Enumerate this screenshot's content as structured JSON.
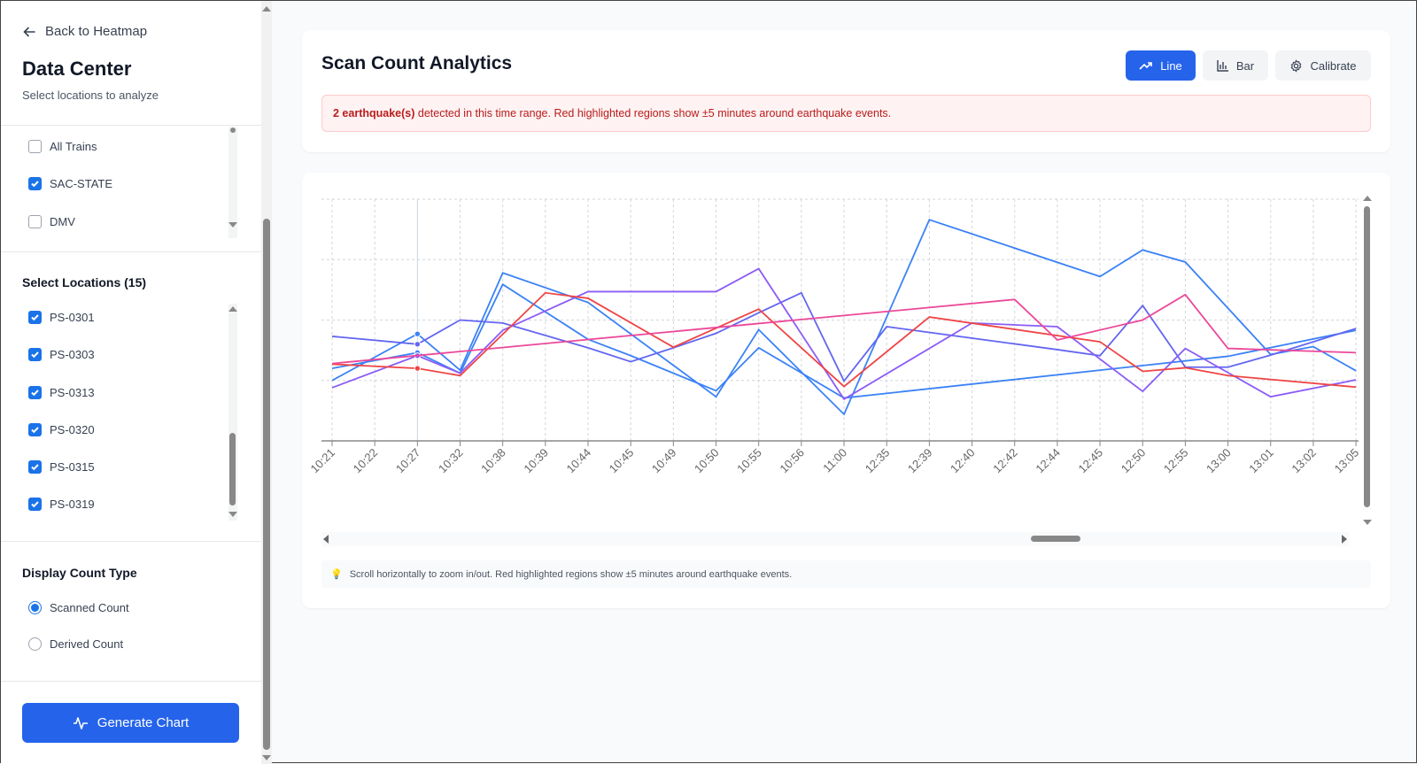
{
  "sidebar": {
    "back_label": "Back to Heatmap",
    "title": "Data Center",
    "subtitle": "Select locations to analyze",
    "trains": [
      {
        "label": "All Trains",
        "checked": false
      },
      {
        "label": "SAC-STATE",
        "checked": true
      },
      {
        "label": "DMV",
        "checked": false
      }
    ],
    "locations_title": "Select Locations (15)",
    "locations": [
      {
        "label": "PS-0301",
        "checked": true
      },
      {
        "label": "PS-0303",
        "checked": true
      },
      {
        "label": "PS-0313",
        "checked": true
      },
      {
        "label": "PS-0320",
        "checked": true
      },
      {
        "label": "PS-0315",
        "checked": true
      },
      {
        "label": "PS-0319",
        "checked": true
      }
    ],
    "count_type_title": "Display Count Type",
    "count_types": [
      {
        "label": "Scanned Count",
        "selected": true
      },
      {
        "label": "Derived Count",
        "selected": false
      }
    ],
    "generate_label": "Generate Chart"
  },
  "header": {
    "title": "Scan Count Analytics",
    "buttons": {
      "line": "Line",
      "bar": "Bar",
      "calibrate": "Calibrate"
    },
    "active_view": "line",
    "alert_bold": "2 earthquake(s)",
    "alert_text": " detected in this time range. Red highlighted regions show ±5 minutes around earthquake events."
  },
  "hint": {
    "icon": "lightbulb-icon",
    "text": "Scroll horizontally to zoom in/out. Red highlighted regions show ±5 minutes around earthquake events."
  },
  "colors": {
    "accent": "#2563eb",
    "alert_bg": "#fef2f2",
    "alert_text": "#b91c1c"
  },
  "chart_data": {
    "type": "line",
    "title": "",
    "xlabel": "",
    "ylabel": "",
    "ylim": [
      0,
      4
    ],
    "grid": true,
    "legend": "none",
    "categories": [
      "10:21",
      "10:22",
      "10:27",
      "10:32",
      "10:38",
      "10:39",
      "10:44",
      "10:45",
      "10:49",
      "10:50",
      "10:55",
      "10:56",
      "11:00",
      "12:35",
      "12:39",
      "12:40",
      "12:42",
      "12:44",
      "12:45",
      "12:50",
      "12:55",
      "13:00",
      "13:01",
      "13:02",
      "13:05"
    ],
    "hover_category": "10:27",
    "series": [
      {
        "color": "#3b82f6",
        "points": [
          [
            "10:21",
            1.0
          ],
          [
            "10:27",
            1.77
          ],
          [
            "10:32",
            1.17
          ],
          [
            "10:38",
            2.78
          ],
          [
            "10:44",
            2.29
          ],
          [
            "10:50",
            0.73
          ],
          [
            "10:55",
            1.84
          ],
          [
            "11:00",
            0.44
          ],
          [
            "12:39",
            3.66
          ],
          [
            "12:45",
            2.72
          ],
          [
            "12:50",
            3.16
          ],
          [
            "12:55",
            2.96
          ],
          [
            "13:01",
            1.43
          ],
          [
            "13:02",
            1.56
          ],
          [
            "13:05",
            1.16
          ]
        ]
      },
      {
        "color": "#3b82f6",
        "points": [
          [
            "10:21",
            1.2
          ],
          [
            "10:27",
            1.46
          ],
          [
            "10:32",
            1.12
          ],
          [
            "10:38",
            2.59
          ],
          [
            "10:44",
            1.68
          ],
          [
            "10:45",
            1.41
          ],
          [
            "10:50",
            0.83
          ],
          [
            "10:55",
            1.54
          ],
          [
            "11:00",
            0.71
          ],
          [
            "13:00",
            1.4
          ],
          [
            "13:05",
            1.83
          ]
        ]
      },
      {
        "color": "#6366f1",
        "points": [
          [
            "10:21",
            1.73
          ],
          [
            "10:27",
            1.6
          ],
          [
            "10:32",
            2.0
          ],
          [
            "10:38",
            1.95
          ],
          [
            "10:44",
            1.54
          ],
          [
            "10:45",
            1.31
          ],
          [
            "10:49",
            1.54
          ],
          [
            "10:50",
            1.78
          ],
          [
            "10:55",
            2.12
          ],
          [
            "10:56",
            2.45
          ],
          [
            "11:00",
            0.99
          ],
          [
            "12:35",
            1.89
          ],
          [
            "12:44",
            1.51
          ],
          [
            "12:45",
            1.41
          ],
          [
            "12:50",
            2.24
          ],
          [
            "12:55",
            1.22
          ],
          [
            "13:00",
            1.22
          ],
          [
            "13:01",
            1.42
          ],
          [
            "13:05",
            1.86
          ]
        ]
      },
      {
        "color": "#8b5cf6",
        "points": [
          [
            "10:21",
            0.88
          ],
          [
            "10:27",
            1.41
          ],
          [
            "10:32",
            1.12
          ],
          [
            "10:38",
            1.83
          ],
          [
            "10:44",
            2.47
          ],
          [
            "10:50",
            2.47
          ],
          [
            "10:55",
            2.85
          ],
          [
            "11:00",
            0.69
          ],
          [
            "12:40",
            1.95
          ],
          [
            "12:44",
            1.89
          ],
          [
            "12:50",
            0.82
          ],
          [
            "12:55",
            1.53
          ],
          [
            "13:01",
            0.73
          ],
          [
            "13:05",
            1.01
          ]
        ]
      },
      {
        "color": "#ef4444",
        "points": [
          [
            "10:21",
            1.27
          ],
          [
            "10:27",
            1.2
          ],
          [
            "10:32",
            1.08
          ],
          [
            "10:39",
            2.45
          ],
          [
            "10:44",
            2.36
          ],
          [
            "10:49",
            1.55
          ],
          [
            "10:55",
            2.18
          ],
          [
            "11:00",
            0.9
          ],
          [
            "12:39",
            2.05
          ],
          [
            "12:45",
            1.64
          ],
          [
            "12:50",
            1.15
          ],
          [
            "12:55",
            1.21
          ],
          [
            "13:00",
            1.08
          ],
          [
            "13:05",
            0.89
          ]
        ]
      },
      {
        "color": "#ec4899",
        "points": [
          [
            "10:21",
            1.28
          ],
          [
            "12:42",
            2.34
          ],
          [
            "12:44",
            1.67
          ],
          [
            "12:50",
            2.0
          ],
          [
            "12:55",
            2.42
          ],
          [
            "13:00",
            1.53
          ],
          [
            "13:05",
            1.46
          ]
        ]
      }
    ]
  }
}
